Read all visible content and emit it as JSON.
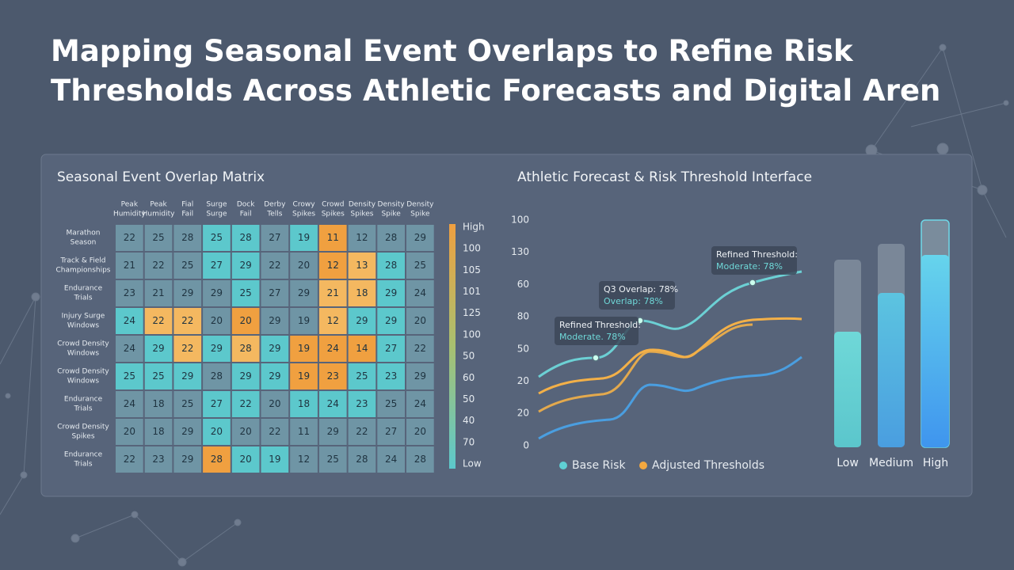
{
  "header": {
    "title": "Mapping Seasonal Event Overlaps to Refine Risk Thresholds Across Athletic Forecasts and Digital Aren"
  },
  "matrix": {
    "title": "Seasonal Event Overlap Matrix",
    "columns": [
      [
        "Peak",
        "Humidity"
      ],
      [
        "Peak",
        "Humidity"
      ],
      [
        "Fial",
        "Fail"
      ],
      [
        "Surge",
        "Surge"
      ],
      [
        "Dock",
        "Fail"
      ],
      [
        "Derby",
        "Tells"
      ],
      [
        "Crowy",
        "Spikes"
      ],
      [
        "Crowd",
        "Spikes"
      ],
      [
        "Density",
        "Spikes"
      ],
      [
        "Density",
        "Spike"
      ],
      [
        "Density",
        "Spike"
      ]
    ],
    "rows": [
      {
        "label": [
          "Marathon",
          "Season"
        ],
        "values": [
          22,
          25,
          28,
          25,
          28,
          27,
          19,
          11,
          12,
          28,
          29
        ],
        "colors": [
          "#6f95a5",
          "#6f95a5",
          "#6f95a5",
          "#5cc8cc",
          "#5cc8cc",
          "#6f95a5",
          "#5cc8cc",
          "#f0a040",
          "#6f95a5",
          "#6f95a5",
          "#6f95a5"
        ]
      },
      {
        "label": [
          "Track & Field",
          "Championships"
        ],
        "values": [
          21,
          22,
          25,
          27,
          29,
          22,
          20,
          12,
          13,
          28,
          25
        ],
        "colors": [
          "#6f95a5",
          "#6f95a5",
          "#6f95a5",
          "#5cc8cc",
          "#5cc8cc",
          "#6f95a5",
          "#6f95a5",
          "#f0a040",
          "#f4b860",
          "#5cc8cc",
          "#6f95a5"
        ]
      },
      {
        "label": [
          "Endurance",
          "Trials"
        ],
        "values": [
          23,
          21,
          29,
          29,
          25,
          27,
          29,
          21,
          18,
          29,
          24
        ],
        "colors": [
          "#6f95a5",
          "#6f95a5",
          "#6f95a5",
          "#6f95a5",
          "#5cc8cc",
          "#6f95a5",
          "#6f95a5",
          "#f4b860",
          "#f4b860",
          "#5cc8cc",
          "#6f95a5"
        ]
      },
      {
        "label": [
          "Injury Surge",
          "Windows"
        ],
        "values": [
          24,
          22,
          22,
          20,
          20,
          29,
          19,
          12,
          29,
          29,
          20
        ],
        "colors": [
          "#5cc8cc",
          "#f4b860",
          "#f4b860",
          "#6f95a5",
          "#f0a040",
          "#6f95a5",
          "#6f95a5",
          "#f4b860",
          "#5cc8cc",
          "#5cc8cc",
          "#6f95a5"
        ]
      },
      {
        "label": [
          "Crowd Density",
          "Windows"
        ],
        "values": [
          24,
          29,
          22,
          29,
          28,
          29,
          19,
          24,
          14,
          27,
          22
        ],
        "colors": [
          "#6f95a5",
          "#5cc8cc",
          "#f4b860",
          "#5cc8cc",
          "#f4b860",
          "#5cc8cc",
          "#f0a040",
          "#f0a040",
          "#f0a040",
          "#5cc8cc",
          "#6f95a5"
        ]
      },
      {
        "label": [
          "Crowd Density",
          "Windows"
        ],
        "values": [
          25,
          25,
          29,
          28,
          29,
          29,
          19,
          23,
          25,
          23,
          29
        ],
        "colors": [
          "#5cc8cc",
          "#5cc8cc",
          "#5cc8cc",
          "#6f95a5",
          "#5cc8cc",
          "#5cc8cc",
          "#f0a040",
          "#f0a040",
          "#5cc8cc",
          "#5cc8cc",
          "#6f95a5"
        ]
      },
      {
        "label": [
          "Endurance",
          "Trials"
        ],
        "values": [
          24,
          18,
          25,
          27,
          22,
          20,
          18,
          24,
          23,
          25,
          24
        ],
        "colors": [
          "#6f95a5",
          "#6f95a5",
          "#6f95a5",
          "#5cc8cc",
          "#5cc8cc",
          "#6f95a5",
          "#5cc8cc",
          "#5cc8cc",
          "#5cc8cc",
          "#6f95a5",
          "#6f95a5"
        ]
      },
      {
        "label": [
          "Crowd Density",
          "Spikes"
        ],
        "values": [
          20,
          18,
          29,
          20,
          20,
          22,
          11,
          29,
          22,
          27,
          20
        ],
        "colors": [
          "#6f95a5",
          "#6f95a5",
          "#6f95a5",
          "#5cc8cc",
          "#6f95a5",
          "#6f95a5",
          "#6f95a5",
          "#6f95a5",
          "#6f95a5",
          "#6f95a5",
          "#6f95a5"
        ]
      },
      {
        "label": [
          "Endurance",
          "Trials"
        ],
        "values": [
          22,
          23,
          29,
          28,
          20,
          19,
          12,
          25,
          28,
          24,
          28
        ],
        "colors": [
          "#6f95a5",
          "#6f95a5",
          "#6f95a5",
          "#f0a040",
          "#5cc8cc",
          "#5cc8cc",
          "#6f95a5",
          "#6f95a5",
          "#6f95a5",
          "#6f95a5",
          "#6f95a5"
        ]
      }
    ],
    "scale_labels": [
      "High",
      "100",
      "105",
      "101",
      "125",
      "100",
      "50",
      "60",
      "50",
      "40",
      "70",
      "Low"
    ]
  },
  "forecast": {
    "title": "Athletic Forecast & Risk Threshold Interface",
    "y_labels": [
      "100",
      "130",
      "60",
      "80",
      "50",
      "20",
      "20",
      "0"
    ],
    "annotations": [
      [
        "Refined Threshold:",
        "Moderate. 78%"
      ],
      [
        "Q3 Overlap: 78%",
        "Overlap: 78%"
      ],
      [
        "Refined Threshold:",
        "Moderate: 78%"
      ]
    ],
    "legend": [
      "Base Risk",
      "Adjusted Thresholds"
    ],
    "gauges": [
      "Low",
      "Medium",
      "High"
    ]
  }
}
